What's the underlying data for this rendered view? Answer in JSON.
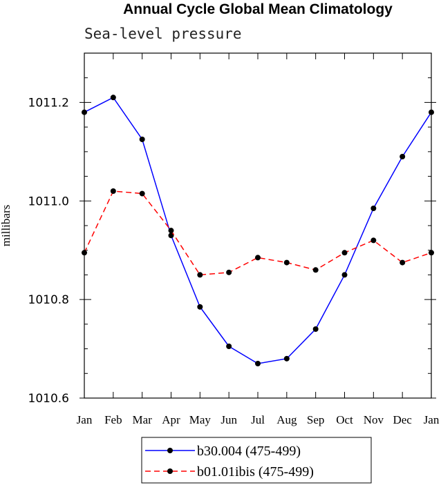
{
  "chart_data": {
    "type": "line",
    "title": "Annual Cycle Global Mean Climatology",
    "subtitle": "Sea-level pressure",
    "xlabel": "",
    "ylabel": "millibars",
    "categories": [
      "Jan",
      "Feb",
      "Mar",
      "Apr",
      "May",
      "Jun",
      "Jul",
      "Aug",
      "Sep",
      "Oct",
      "Nov",
      "Dec",
      "Jan"
    ],
    "yticks": [
      "1010.6",
      "1010.8",
      "1011.0",
      "1011.2"
    ],
    "ylim": [
      1010.6,
      1011.3
    ],
    "series": [
      {
        "name": "b30.004 (475-499)",
        "color": "#0000ff",
        "dash": "solid",
        "values": [
          1011.18,
          1011.21,
          1011.125,
          1010.93,
          1010.785,
          1010.705,
          1010.67,
          1010.68,
          1010.74,
          1010.85,
          1010.985,
          1011.09,
          1011.18
        ]
      },
      {
        "name": "b01.01ibis (475-499)",
        "color": "#ff0000",
        "dash": "dashed",
        "values": [
          1010.895,
          1011.02,
          1011.015,
          1010.94,
          1010.85,
          1010.855,
          1010.885,
          1010.875,
          1010.86,
          1010.895,
          1010.92,
          1010.875,
          1010.895
        ]
      }
    ]
  }
}
